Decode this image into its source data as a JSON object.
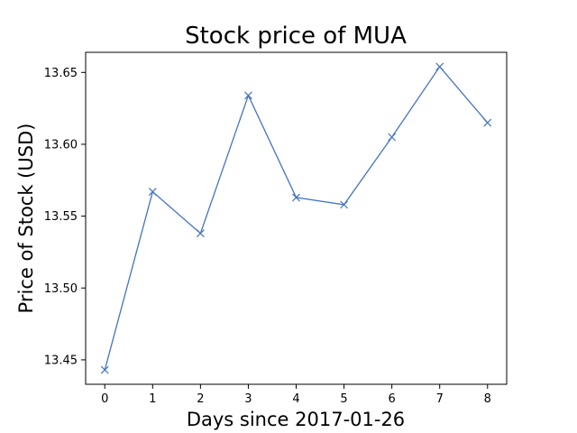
{
  "chart_data": {
    "type": "line",
    "title": "Stock price of MUA",
    "xlabel": "Days since 2017-01-26",
    "ylabel": "Price of Stock (USD)",
    "x": [
      0,
      1,
      2,
      3,
      4,
      5,
      6,
      7,
      8
    ],
    "series": [
      {
        "values": [
          13.443,
          13.567,
          13.538,
          13.634,
          13.563,
          13.558,
          13.605,
          13.654,
          13.615
        ],
        "color": "#4472c4",
        "marker": "x"
      }
    ],
    "xticks": [
      "0",
      "1",
      "2",
      "3",
      "4",
      "5",
      "6",
      "7",
      "8"
    ],
    "yticks": [
      "13.45",
      "13.50",
      "13.55",
      "13.60",
      "13.65"
    ],
    "xlim": [
      -0.4,
      8.4
    ],
    "ylim": [
      13.433,
      13.664
    ],
    "grid": false,
    "legend": "none"
  }
}
